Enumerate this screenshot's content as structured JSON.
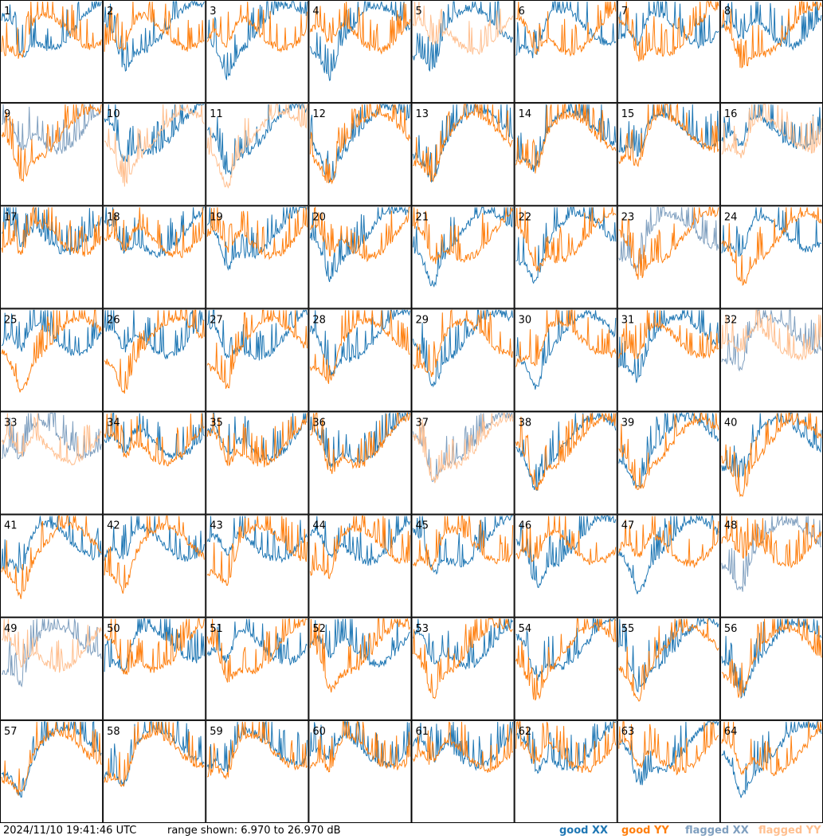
{
  "footer": {
    "timestamp": "2024/11/10 19:41:46 UTC",
    "range": "range shown: 6.970 to 26.970 dB"
  },
  "legend": {
    "good_xx": "good XX",
    "good_yy": "good YY",
    "flagged_xx": "flagged XX",
    "flagged_yy": "flagged YY"
  },
  "colors": {
    "good_xx": "#1f77b4",
    "good_yy": "#ff7f0e",
    "flagged_xx": "#7f9fbf",
    "flagged_yy": "#ffbf8f",
    "grid": "#000000"
  },
  "chart_data": {
    "type": "line",
    "layout": "8x8 small multiples",
    "ylim": [
      6.97,
      26.97
    ],
    "y_unit": "dB",
    "panels": [
      {
        "id": 1,
        "xx": "good",
        "yy": "good"
      },
      {
        "id": 2,
        "xx": "good",
        "yy": "good"
      },
      {
        "id": 3,
        "xx": "good",
        "yy": "good"
      },
      {
        "id": 4,
        "xx": "good",
        "yy": "good"
      },
      {
        "id": 5,
        "xx": "good",
        "yy": "flagged"
      },
      {
        "id": 6,
        "xx": "good",
        "yy": "good"
      },
      {
        "id": 7,
        "xx": "good",
        "yy": "good"
      },
      {
        "id": 8,
        "xx": "good",
        "yy": "good"
      },
      {
        "id": 9,
        "xx": "flagged",
        "yy": "good"
      },
      {
        "id": 10,
        "xx": "good",
        "yy": "flagged"
      },
      {
        "id": 11,
        "xx": "good",
        "yy": "flagged"
      },
      {
        "id": 12,
        "xx": "good",
        "yy": "good"
      },
      {
        "id": 13,
        "xx": "good",
        "yy": "good"
      },
      {
        "id": 14,
        "xx": "good",
        "yy": "good"
      },
      {
        "id": 15,
        "xx": "good",
        "yy": "good"
      },
      {
        "id": 16,
        "xx": "good",
        "yy": "flagged"
      },
      {
        "id": 17,
        "xx": "good",
        "yy": "good"
      },
      {
        "id": 18,
        "xx": "good",
        "yy": "good"
      },
      {
        "id": 19,
        "xx": "good",
        "yy": "good"
      },
      {
        "id": 20,
        "xx": "good",
        "yy": "good"
      },
      {
        "id": 21,
        "xx": "good",
        "yy": "good"
      },
      {
        "id": 22,
        "xx": "good",
        "yy": "good"
      },
      {
        "id": 23,
        "xx": "flagged",
        "yy": "good"
      },
      {
        "id": 24,
        "xx": "good",
        "yy": "good"
      },
      {
        "id": 25,
        "xx": "good",
        "yy": "good"
      },
      {
        "id": 26,
        "xx": "good",
        "yy": "good"
      },
      {
        "id": 27,
        "xx": "good",
        "yy": "good"
      },
      {
        "id": 28,
        "xx": "good",
        "yy": "good"
      },
      {
        "id": 29,
        "xx": "good",
        "yy": "good"
      },
      {
        "id": 30,
        "xx": "good",
        "yy": "good"
      },
      {
        "id": 31,
        "xx": "good",
        "yy": "good"
      },
      {
        "id": 32,
        "xx": "flagged",
        "yy": "flagged"
      },
      {
        "id": 33,
        "xx": "flagged",
        "yy": "flagged"
      },
      {
        "id": 34,
        "xx": "good",
        "yy": "good"
      },
      {
        "id": 35,
        "xx": "good",
        "yy": "good"
      },
      {
        "id": 36,
        "xx": "good",
        "yy": "good"
      },
      {
        "id": 37,
        "xx": "flagged",
        "yy": "flagged"
      },
      {
        "id": 38,
        "xx": "good",
        "yy": "good"
      },
      {
        "id": 39,
        "xx": "good",
        "yy": "good"
      },
      {
        "id": 40,
        "xx": "good",
        "yy": "good"
      },
      {
        "id": 41,
        "xx": "good",
        "yy": "good"
      },
      {
        "id": 42,
        "xx": "good",
        "yy": "good"
      },
      {
        "id": 43,
        "xx": "good",
        "yy": "good"
      },
      {
        "id": 44,
        "xx": "good",
        "yy": "good"
      },
      {
        "id": 45,
        "xx": "good",
        "yy": "good"
      },
      {
        "id": 46,
        "xx": "good",
        "yy": "good"
      },
      {
        "id": 47,
        "xx": "good",
        "yy": "good"
      },
      {
        "id": 48,
        "xx": "flagged",
        "yy": "good"
      },
      {
        "id": 49,
        "xx": "flagged",
        "yy": "flagged"
      },
      {
        "id": 50,
        "xx": "good",
        "yy": "good"
      },
      {
        "id": 51,
        "xx": "good",
        "yy": "good"
      },
      {
        "id": 52,
        "xx": "good",
        "yy": "good"
      },
      {
        "id": 53,
        "xx": "good",
        "yy": "good"
      },
      {
        "id": 54,
        "xx": "good",
        "yy": "good"
      },
      {
        "id": 55,
        "xx": "good",
        "yy": "good"
      },
      {
        "id": 56,
        "xx": "good",
        "yy": "good"
      },
      {
        "id": 57,
        "xx": "good",
        "yy": "good"
      },
      {
        "id": 58,
        "xx": "good",
        "yy": "good"
      },
      {
        "id": 59,
        "xx": "good",
        "yy": "good"
      },
      {
        "id": 60,
        "xx": "good",
        "yy": "good"
      },
      {
        "id": 61,
        "xx": "good",
        "yy": "good"
      },
      {
        "id": 62,
        "xx": "good",
        "yy": "good"
      },
      {
        "id": 63,
        "xx": "good",
        "yy": "good"
      },
      {
        "id": 64,
        "xx": "good",
        "yy": "good"
      }
    ]
  }
}
